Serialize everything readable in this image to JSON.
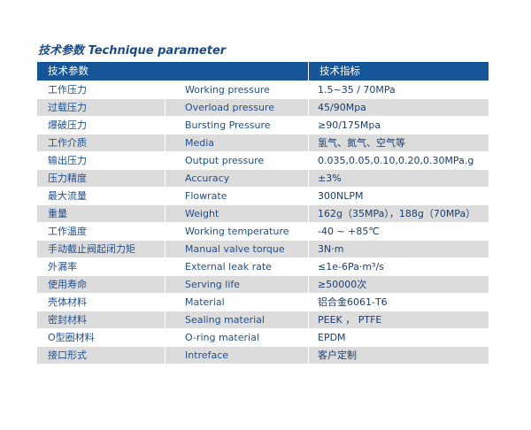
{
  "title": "技术参数 Technique parameter",
  "header": {
    "param": "技术参数",
    "spec": "技术指标"
  },
  "colors": {
    "header_bg": "#165597",
    "text": "#1f4f8e",
    "stripe": "#dcdcdc"
  },
  "rows": [
    {
      "cn": "工作压力",
      "en": "Working pressure",
      "value": "1.5~35 / 70MPa"
    },
    {
      "cn": "过载压力",
      "en": "Overload pressure",
      "value": "45/90Mpa"
    },
    {
      "cn": "爆破压力",
      "en": "Bursting Pressure",
      "value": "≥90/175Mpa"
    },
    {
      "cn": "工作介质",
      "en": "Media",
      "value": "氢气、氮气、空气等"
    },
    {
      "cn": "输出压力",
      "en": "Output pressure",
      "value": "0.035,0.05,0.10,0.20,0.30MPa.g"
    },
    {
      "cn": "压力精度",
      "en": "Accuracy",
      "value": "±3%"
    },
    {
      "cn": "最大流量",
      "en": "Flowrate",
      "value": "300NLPM"
    },
    {
      "cn": "重量",
      "en": "Weight",
      "value": "162g（35MPa），188g（70MPa）"
    },
    {
      "cn": "工作温度",
      "en": "Working temperature",
      "value": "-40 ~ +85℃"
    },
    {
      "cn": "手动截止阀起闭力矩",
      "en": "Manual valve torque",
      "value": "3N·m"
    },
    {
      "cn": "外漏率",
      "en": "External leak rate",
      "value": "≤1e-6Pa·m³/s"
    },
    {
      "cn": "使用寿命",
      "en": "Serving life",
      "value": "≥50000次"
    },
    {
      "cn": "壳体材料",
      "en": "Material",
      "value": "铝合金6061-T6"
    },
    {
      "cn": "密封材料",
      "en": "Sealing material",
      "value": "PEEK ， PTFE"
    },
    {
      "cn": "O型圈材料",
      "en": "O-ring material",
      "value": "EPDM"
    },
    {
      "cn": "接口形式",
      "en": "Intreface",
      "value": "客户定制"
    }
  ]
}
